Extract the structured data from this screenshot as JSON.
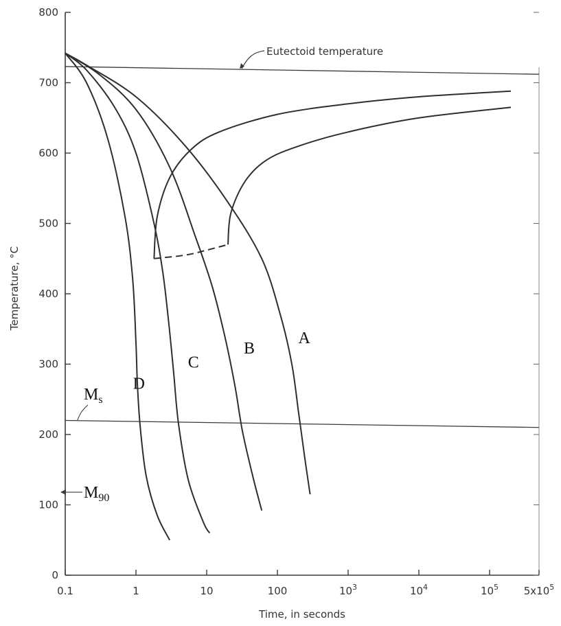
{
  "chart_data": {
    "type": "line",
    "title": "",
    "xlabel": "Time, in seconds",
    "ylabel": "Temperature, °C",
    "x_scale": "log",
    "xlim": [
      0.1,
      500000
    ],
    "ylim": [
      0,
      800
    ],
    "grid": false,
    "y_ticks": [
      "0",
      "100",
      "200",
      "300",
      "400",
      "500",
      "600",
      "700",
      "800"
    ],
    "x_ticks": [
      {
        "value": 0.1,
        "label": "0.1",
        "sup": ""
      },
      {
        "value": 1,
        "label": "1",
        "sup": ""
      },
      {
        "value": 10,
        "label": "10",
        "sup": ""
      },
      {
        "value": 100,
        "label": "100",
        "sup": ""
      },
      {
        "value": 1000,
        "label": "10",
        "sup": "3"
      },
      {
        "value": 10000,
        "label": "10",
        "sup": "4"
      },
      {
        "value": 100000,
        "label": "10",
        "sup": "5"
      },
      {
        "value": 500000,
        "label": "5x10",
        "sup": "5"
      }
    ],
    "horizontal_lines": [
      {
        "name": "eutectoid",
        "label": "Eutectoid temperature",
        "y": [
          723,
          712
        ]
      },
      {
        "name": "ms",
        "label": "M",
        "sub": "s",
        "y": [
          220,
          210
        ]
      }
    ],
    "marker_labels": [
      {
        "name": "m90",
        "label": "M",
        "sub": "90",
        "y": 118
      }
    ],
    "series": [
      {
        "name": "A",
        "label_at": [
          240,
          330
        ],
        "points": [
          [
            0.1,
            742
          ],
          [
            0.2,
            725
          ],
          [
            1,
            680
          ],
          [
            5,
            610
          ],
          [
            20,
            530
          ],
          [
            60,
            450
          ],
          [
            110,
            370
          ],
          [
            160,
            300
          ],
          [
            200,
            230
          ],
          [
            245,
            165
          ],
          [
            290,
            115
          ]
        ]
      },
      {
        "name": "B",
        "label_at": [
          40,
          315
        ],
        "points": [
          [
            0.1,
            742
          ],
          [
            0.3,
            712
          ],
          [
            1,
            662
          ],
          [
            3,
            580
          ],
          [
            7,
            480
          ],
          [
            12,
            410
          ],
          [
            18,
            340
          ],
          [
            25,
            270
          ],
          [
            32,
            205
          ],
          [
            45,
            140
          ],
          [
            60,
            92
          ]
        ]
      },
      {
        "name": "C",
        "label_at": [
          6.5,
          295
        ],
        "points": [
          [
            0.1,
            742
          ],
          [
            0.2,
            718
          ],
          [
            0.5,
            665
          ],
          [
            1,
            600
          ],
          [
            1.8,
            500
          ],
          [
            2.4,
            430
          ],
          [
            2.9,
            360
          ],
          [
            3.4,
            290
          ],
          [
            4,
            215
          ],
          [
            5.5,
            135
          ],
          [
            9,
            75
          ],
          [
            11,
            60
          ]
        ]
      },
      {
        "name": "D",
        "label_at": [
          1.1,
          265
        ],
        "points": [
          [
            0.1,
            742
          ],
          [
            0.2,
            700
          ],
          [
            0.4,
            620
          ],
          [
            0.7,
            510
          ],
          [
            0.9,
            420
          ],
          [
            1,
            330
          ],
          [
            1.05,
            270
          ],
          [
            1.15,
            210
          ],
          [
            1.4,
            140
          ],
          [
            2,
            85
          ],
          [
            3,
            50
          ]
        ]
      },
      {
        "name": "transformation-start",
        "label_at": null,
        "points": [
          [
            1.8,
            450
          ],
          [
            2,
            510
          ],
          [
            3,
            565
          ],
          [
            6,
            605
          ],
          [
            15,
            630
          ],
          [
            100,
            655
          ],
          [
            1000,
            670
          ],
          [
            10000,
            680
          ],
          [
            200000,
            688
          ]
        ]
      },
      {
        "name": "transformation-finish",
        "label_at": null,
        "points": [
          [
            20,
            470
          ],
          [
            22,
            515
          ],
          [
            35,
            560
          ],
          [
            70,
            590
          ],
          [
            200,
            610
          ],
          [
            1000,
            630
          ],
          [
            10000,
            650
          ],
          [
            200000,
            665
          ]
        ]
      }
    ],
    "dashed": [
      {
        "name": "transformation-cutoff",
        "points": [
          [
            1.8,
            450
          ],
          [
            5,
            455
          ],
          [
            10,
            462
          ],
          [
            20,
            470
          ]
        ]
      }
    ]
  }
}
